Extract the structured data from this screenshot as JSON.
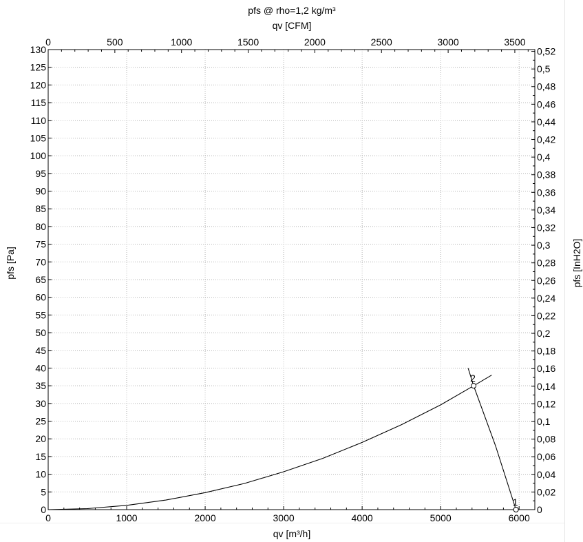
{
  "chart_data": {
    "type": "line",
    "title": "pfs @ rho=1,2 kg/m³",
    "xlabel": "qv [m³/h]",
    "x2label": "qv [CFM]",
    "ylabel": "pfs [Pa]",
    "y2label": "pfs [InH2O]",
    "xlim": [
      0,
      6200
    ],
    "ylim": [
      0,
      130
    ],
    "x2lim": [
      0,
      3650
    ],
    "y2lim": [
      0,
      0.522
    ],
    "grid": true,
    "x_ticks": [
      "0",
      "1000",
      "2000",
      "3000",
      "4000",
      "5000",
      "6000"
    ],
    "y_ticks": [
      "0",
      "5",
      "10",
      "15",
      "20",
      "25",
      "30",
      "35",
      "40",
      "45",
      "50",
      "55",
      "60",
      "65",
      "70",
      "75",
      "80",
      "85",
      "90",
      "95",
      "100",
      "105",
      "110",
      "115",
      "120",
      "125",
      "130"
    ],
    "x2_ticks": [
      "0",
      "500",
      "1000",
      "1500",
      "2000",
      "2500",
      "3000",
      "3500"
    ],
    "y2_ticks": [
      "0",
      "0,02",
      "0,04",
      "0,06",
      "0,08",
      "0,1",
      "0,12",
      "0,14",
      "0,16",
      "0,18",
      "0,2",
      "0,22",
      "0,24",
      "0,26",
      "0,28",
      "0,3",
      "0,32",
      "0,34",
      "0,36",
      "0,38",
      "0,4",
      "0,42",
      "0,44",
      "0,46",
      "0,48",
      "0,5",
      "0,52"
    ],
    "series": [
      {
        "role": "system-curve",
        "x": [
          0,
          500,
          1000,
          1500,
          2000,
          2500,
          3000,
          3500,
          4000,
          4500,
          5000,
          5420,
          5650
        ],
        "y": [
          0,
          0.3,
          1.2,
          2.7,
          4.8,
          7.4,
          10.7,
          14.5,
          19.0,
          24.0,
          29.6,
          35.0,
          38.0
        ]
      },
      {
        "role": "fan-curve",
        "x": [
          5350,
          5420,
          5700,
          5960
        ],
        "y": [
          40,
          35,
          18,
          0
        ]
      }
    ],
    "points": [
      {
        "label": "1",
        "x": 5960,
        "y": 0
      },
      {
        "label": "2",
        "x": 5420,
        "y": 35
      }
    ]
  }
}
